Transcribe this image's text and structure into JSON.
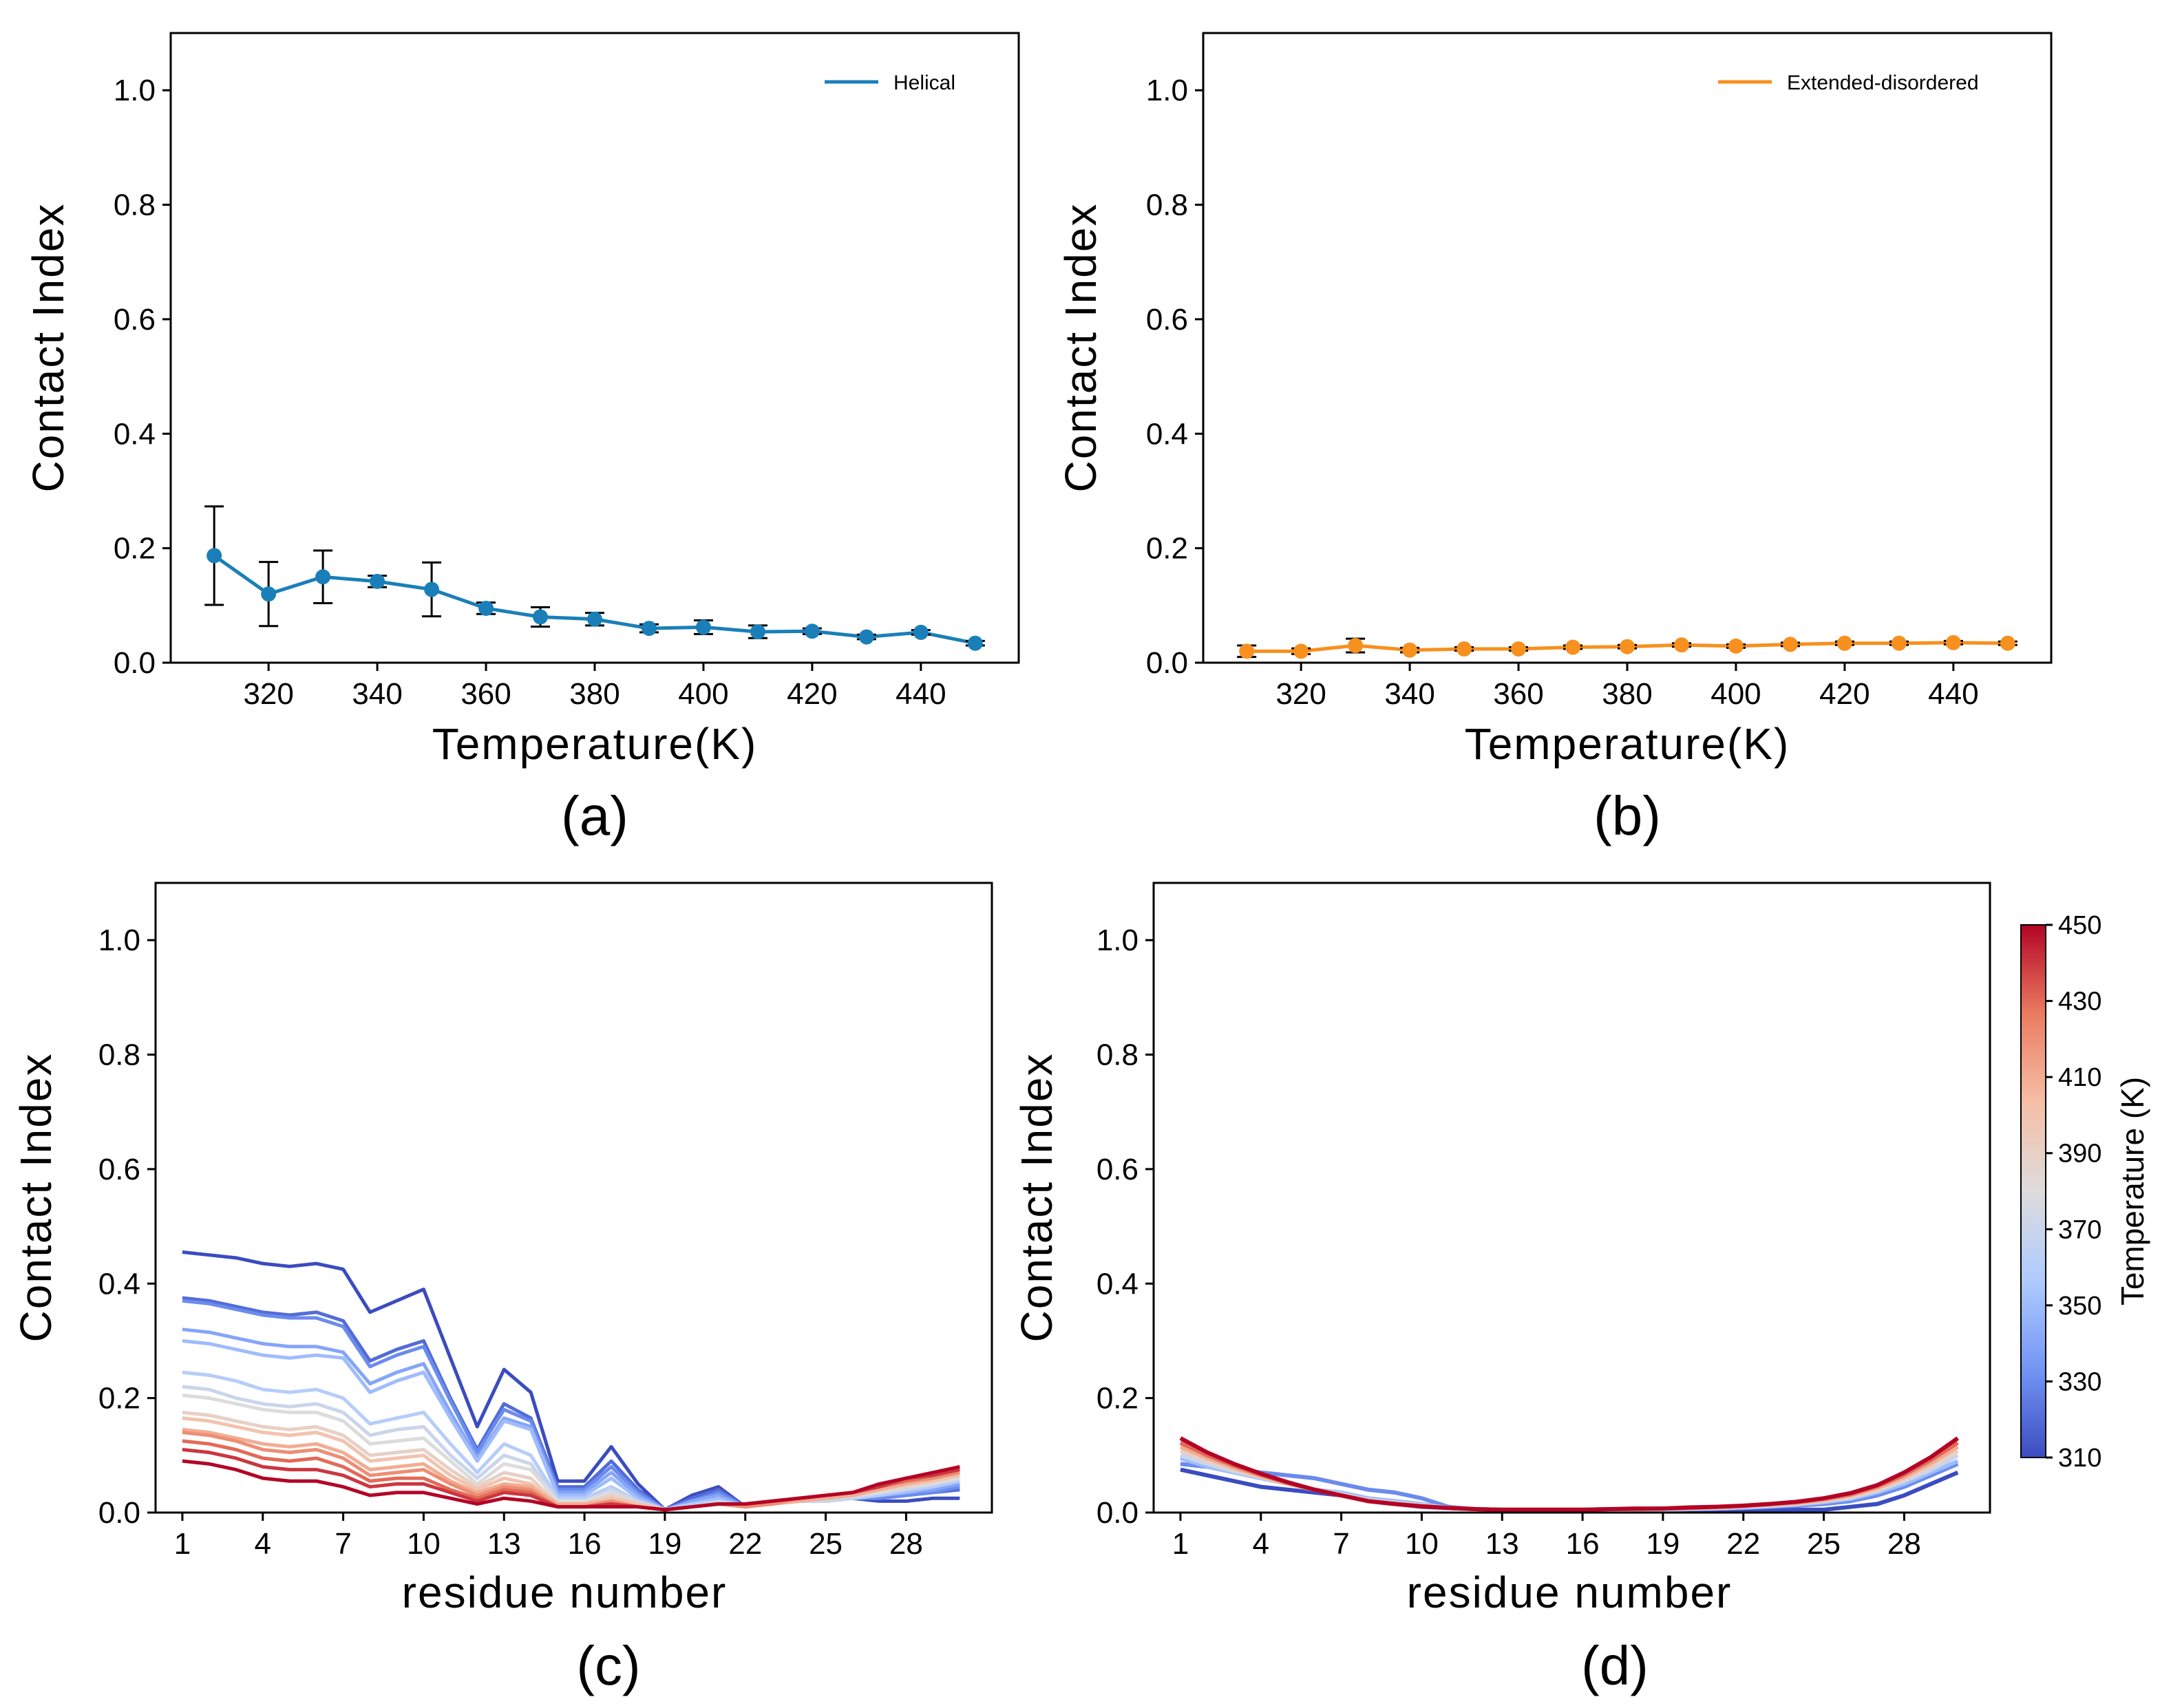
{
  "chart_data": [
    {
      "id": "a",
      "type": "line",
      "panel_label": "(a)",
      "xlabel": "Temperature(K)",
      "ylabel": "Contact Index",
      "xlim": [
        302,
        458
      ],
      "ylim": [
        0,
        1.1
      ],
      "xticks": [
        320,
        340,
        360,
        380,
        400,
        420,
        440
      ],
      "yticks": [
        0.0,
        0.2,
        0.4,
        0.6,
        0.8,
        1.0
      ],
      "legend_position": "top-right",
      "series": [
        {
          "name": "Helical",
          "color": "#1a7fb8",
          "x": [
            310,
            320,
            330,
            340,
            350,
            360,
            370,
            380,
            390,
            400,
            410,
            420,
            430,
            440,
            450
          ],
          "y": [
            0.187,
            0.12,
            0.15,
            0.142,
            0.128,
            0.095,
            0.08,
            0.076,
            0.06,
            0.062,
            0.054,
            0.055,
            0.045,
            0.053,
            0.034
          ],
          "err": [
            0.086,
            0.056,
            0.046,
            0.01,
            0.047,
            0.01,
            0.017,
            0.011,
            0.007,
            0.012,
            0.011,
            0.005,
            0.004,
            0.004,
            0.004
          ]
        }
      ]
    },
    {
      "id": "b",
      "type": "line",
      "panel_label": "(b)",
      "xlabel": "Temperature(K)",
      "ylabel": "Contact Index",
      "xlim": [
        302,
        458
      ],
      "ylim": [
        0,
        1.1
      ],
      "xticks": [
        320,
        340,
        360,
        380,
        400,
        420,
        440
      ],
      "yticks": [
        0.0,
        0.2,
        0.4,
        0.6,
        0.8,
        1.0
      ],
      "legend_position": "top-right",
      "series": [
        {
          "name": "Extended-disordered",
          "color": "#f7901e",
          "x": [
            310,
            320,
            330,
            340,
            350,
            360,
            370,
            380,
            390,
            400,
            410,
            420,
            430,
            440,
            450
          ],
          "y": [
            0.02,
            0.02,
            0.03,
            0.022,
            0.024,
            0.024,
            0.027,
            0.028,
            0.031,
            0.029,
            0.032,
            0.034,
            0.034,
            0.035,
            0.034
          ],
          "err": [
            0.01,
            0.005,
            0.012,
            0.004,
            0.003,
            0.003,
            0.003,
            0.003,
            0.003,
            0.003,
            0.003,
            0.003,
            0.003,
            0.003,
            0.003
          ]
        }
      ]
    },
    {
      "id": "c",
      "type": "line",
      "panel_label": "(c)",
      "xlabel": "residue number",
      "ylabel": "Contact Index",
      "xlim": [
        0,
        31.2
      ],
      "ylim": [
        0,
        1.1
      ],
      "xticks": [
        1,
        4,
        7,
        10,
        13,
        16,
        19,
        22,
        25,
        28
      ],
      "yticks": [
        0.0,
        0.2,
        0.4,
        0.6,
        0.8,
        1.0
      ],
      "residues": [
        1,
        2,
        3,
        4,
        5,
        6,
        7,
        8,
        9,
        10,
        11,
        12,
        13,
        14,
        15,
        16,
        17,
        18,
        19,
        20,
        21,
        22,
        23,
        24,
        25,
        26,
        27,
        28,
        29,
        30
      ],
      "series": [
        {
          "temperature": 310,
          "values": [
            0.455,
            0.45,
            0.445,
            0.435,
            0.43,
            0.435,
            0.425,
            0.35,
            0.37,
            0.39,
            0.27,
            0.15,
            0.25,
            0.21,
            0.055,
            0.055,
            0.115,
            0.05,
            0.005,
            0.03,
            0.045,
            0.01,
            0.02,
            0.025,
            0.025,
            0.025,
            0.02,
            0.02,
            0.025,
            0.025
          ]
        },
        {
          "temperature": 320,
          "values": [
            0.375,
            0.37,
            0.36,
            0.35,
            0.345,
            0.35,
            0.335,
            0.265,
            0.285,
            0.3,
            0.2,
            0.11,
            0.19,
            0.165,
            0.045,
            0.045,
            0.09,
            0.04,
            0.005,
            0.025,
            0.04,
            0.01,
            0.015,
            0.02,
            0.02,
            0.025,
            0.025,
            0.03,
            0.035,
            0.04
          ]
        },
        {
          "temperature": 330,
          "values": [
            0.37,
            0.365,
            0.355,
            0.345,
            0.34,
            0.34,
            0.325,
            0.255,
            0.275,
            0.29,
            0.195,
            0.105,
            0.18,
            0.16,
            0.04,
            0.04,
            0.08,
            0.035,
            0.005,
            0.02,
            0.035,
            0.01,
            0.015,
            0.02,
            0.02,
            0.025,
            0.025,
            0.03,
            0.035,
            0.045
          ]
        },
        {
          "temperature": 340,
          "values": [
            0.32,
            0.315,
            0.305,
            0.295,
            0.29,
            0.29,
            0.28,
            0.225,
            0.245,
            0.26,
            0.175,
            0.095,
            0.165,
            0.15,
            0.035,
            0.035,
            0.07,
            0.03,
            0.005,
            0.02,
            0.03,
            0.01,
            0.015,
            0.02,
            0.02,
            0.025,
            0.03,
            0.035,
            0.04,
            0.05
          ]
        },
        {
          "temperature": 350,
          "values": [
            0.3,
            0.295,
            0.285,
            0.275,
            0.27,
            0.275,
            0.27,
            0.21,
            0.23,
            0.245,
            0.165,
            0.09,
            0.16,
            0.145,
            0.03,
            0.03,
            0.06,
            0.025,
            0.005,
            0.015,
            0.025,
            0.01,
            0.015,
            0.02,
            0.02,
            0.025,
            0.03,
            0.035,
            0.045,
            0.055
          ]
        },
        {
          "temperature": 360,
          "values": [
            0.245,
            0.24,
            0.23,
            0.215,
            0.21,
            0.215,
            0.2,
            0.155,
            0.165,
            0.175,
            0.12,
            0.07,
            0.12,
            0.1,
            0.025,
            0.025,
            0.045,
            0.02,
            0.005,
            0.015,
            0.02,
            0.01,
            0.015,
            0.02,
            0.02,
            0.025,
            0.03,
            0.04,
            0.045,
            0.055
          ]
        },
        {
          "temperature": 370,
          "values": [
            0.22,
            0.215,
            0.2,
            0.19,
            0.185,
            0.19,
            0.175,
            0.135,
            0.145,
            0.15,
            0.1,
            0.06,
            0.1,
            0.085,
            0.02,
            0.02,
            0.04,
            0.02,
            0.005,
            0.01,
            0.02,
            0.01,
            0.015,
            0.02,
            0.02,
            0.025,
            0.035,
            0.04,
            0.05,
            0.06
          ]
        },
        {
          "temperature": 380,
          "values": [
            0.205,
            0.2,
            0.19,
            0.18,
            0.175,
            0.175,
            0.16,
            0.12,
            0.125,
            0.13,
            0.09,
            0.05,
            0.085,
            0.075,
            0.02,
            0.02,
            0.035,
            0.015,
            0.005,
            0.01,
            0.015,
            0.01,
            0.015,
            0.02,
            0.025,
            0.03,
            0.035,
            0.045,
            0.05,
            0.06
          ]
        },
        {
          "temperature": 390,
          "values": [
            0.175,
            0.17,
            0.16,
            0.15,
            0.145,
            0.15,
            0.135,
            0.1,
            0.105,
            0.11,
            0.075,
            0.045,
            0.07,
            0.06,
            0.015,
            0.015,
            0.03,
            0.015,
            0.005,
            0.01,
            0.015,
            0.01,
            0.015,
            0.02,
            0.025,
            0.03,
            0.04,
            0.045,
            0.055,
            0.065
          ]
        },
        {
          "temperature": 400,
          "values": [
            0.165,
            0.16,
            0.15,
            0.14,
            0.135,
            0.14,
            0.125,
            0.09,
            0.095,
            0.1,
            0.065,
            0.04,
            0.06,
            0.05,
            0.015,
            0.015,
            0.025,
            0.015,
            0.005,
            0.01,
            0.015,
            0.01,
            0.015,
            0.02,
            0.025,
            0.03,
            0.04,
            0.05,
            0.055,
            0.065
          ]
        },
        {
          "temperature": 410,
          "values": [
            0.145,
            0.14,
            0.13,
            0.12,
            0.115,
            0.12,
            0.105,
            0.075,
            0.08,
            0.085,
            0.055,
            0.035,
            0.05,
            0.045,
            0.015,
            0.015,
            0.02,
            0.01,
            0.005,
            0.01,
            0.015,
            0.01,
            0.015,
            0.02,
            0.025,
            0.03,
            0.04,
            0.05,
            0.06,
            0.07
          ]
        },
        {
          "temperature": 420,
          "values": [
            0.14,
            0.135,
            0.125,
            0.11,
            0.105,
            0.11,
            0.095,
            0.065,
            0.07,
            0.075,
            0.05,
            0.03,
            0.045,
            0.04,
            0.01,
            0.01,
            0.02,
            0.01,
            0.005,
            0.01,
            0.015,
            0.01,
            0.015,
            0.025,
            0.03,
            0.035,
            0.045,
            0.055,
            0.06,
            0.07
          ]
        },
        {
          "temperature": 430,
          "values": [
            0.125,
            0.12,
            0.11,
            0.095,
            0.09,
            0.095,
            0.08,
            0.055,
            0.06,
            0.06,
            0.04,
            0.025,
            0.04,
            0.035,
            0.01,
            0.01,
            0.015,
            0.01,
            0.005,
            0.01,
            0.015,
            0.015,
            0.02,
            0.025,
            0.03,
            0.035,
            0.045,
            0.055,
            0.065,
            0.075
          ]
        },
        {
          "temperature": 440,
          "values": [
            0.11,
            0.105,
            0.095,
            0.08,
            0.075,
            0.075,
            0.065,
            0.045,
            0.05,
            0.05,
            0.035,
            0.02,
            0.035,
            0.03,
            0.01,
            0.01,
            0.015,
            0.01,
            0.005,
            0.01,
            0.015,
            0.015,
            0.02,
            0.025,
            0.03,
            0.035,
            0.045,
            0.06,
            0.065,
            0.075
          ]
        },
        {
          "temperature": 450,
          "values": [
            0.09,
            0.085,
            0.075,
            0.06,
            0.055,
            0.055,
            0.045,
            0.03,
            0.035,
            0.035,
            0.025,
            0.015,
            0.025,
            0.02,
            0.01,
            0.01,
            0.01,
            0.01,
            0.005,
            0.01,
            0.015,
            0.015,
            0.02,
            0.025,
            0.03,
            0.035,
            0.05,
            0.06,
            0.07,
            0.08
          ]
        }
      ]
    },
    {
      "id": "d",
      "type": "line",
      "panel_label": "(d)",
      "xlabel": "residue number",
      "ylabel": "Contact Index",
      "xlim": [
        0,
        31.2
      ],
      "ylim": [
        0,
        1.1
      ],
      "xticks": [
        1,
        4,
        7,
        10,
        13,
        16,
        19,
        22,
        25,
        28
      ],
      "yticks": [
        0.0,
        0.2,
        0.4,
        0.6,
        0.8,
        1.0
      ],
      "residues": [
        1,
        2,
        3,
        4,
        5,
        6,
        7,
        8,
        9,
        10,
        11,
        12,
        13,
        14,
        15,
        16,
        17,
        18,
        19,
        20,
        21,
        22,
        23,
        24,
        25,
        26,
        27,
        28,
        29,
        30
      ],
      "series": [
        {
          "temperature": 310,
          "values": [
            0.075,
            0.065,
            0.055,
            0.045,
            0.04,
            0.035,
            0.03,
            0.02,
            0.015,
            0.01,
            0.008,
            0.006,
            0.005,
            0.005,
            0.005,
            0.005,
            0.005,
            0.005,
            0.005,
            0.005,
            0.005,
            0.005,
            0.005,
            0.005,
            0.005,
            0.01,
            0.015,
            0.03,
            0.05,
            0.07
          ]
        },
        {
          "temperature": 330,
          "values": [
            0.085,
            0.08,
            0.075,
            0.07,
            0.065,
            0.06,
            0.05,
            0.04,
            0.035,
            0.025,
            0.01,
            0.006,
            0.005,
            0.005,
            0.005,
            0.005,
            0.005,
            0.005,
            0.005,
            0.006,
            0.007,
            0.008,
            0.01,
            0.012,
            0.015,
            0.02,
            0.03,
            0.045,
            0.065,
            0.085
          ]
        },
        {
          "temperature": 350,
          "values": [
            0.095,
            0.08,
            0.07,
            0.06,
            0.05,
            0.04,
            0.035,
            0.025,
            0.02,
            0.015,
            0.008,
            0.006,
            0.005,
            0.005,
            0.005,
            0.005,
            0.005,
            0.005,
            0.005,
            0.006,
            0.007,
            0.009,
            0.011,
            0.014,
            0.018,
            0.024,
            0.035,
            0.05,
            0.07,
            0.09
          ]
        },
        {
          "temperature": 370,
          "values": [
            0.1,
            0.085,
            0.072,
            0.062,
            0.05,
            0.04,
            0.032,
            0.022,
            0.017,
            0.013,
            0.008,
            0.006,
            0.005,
            0.005,
            0.005,
            0.005,
            0.005,
            0.006,
            0.006,
            0.007,
            0.008,
            0.01,
            0.012,
            0.015,
            0.02,
            0.026,
            0.038,
            0.055,
            0.075,
            0.1
          ]
        },
        {
          "temperature": 390,
          "values": [
            0.108,
            0.09,
            0.075,
            0.062,
            0.05,
            0.04,
            0.031,
            0.021,
            0.016,
            0.012,
            0.008,
            0.006,
            0.005,
            0.005,
            0.005,
            0.005,
            0.006,
            0.006,
            0.007,
            0.008,
            0.009,
            0.011,
            0.013,
            0.016,
            0.021,
            0.028,
            0.04,
            0.058,
            0.08,
            0.108
          ]
        },
        {
          "temperature": 410,
          "values": [
            0.115,
            0.095,
            0.078,
            0.064,
            0.051,
            0.04,
            0.03,
            0.02,
            0.015,
            0.011,
            0.008,
            0.006,
            0.005,
            0.005,
            0.005,
            0.005,
            0.006,
            0.006,
            0.007,
            0.008,
            0.009,
            0.011,
            0.014,
            0.017,
            0.022,
            0.03,
            0.043,
            0.062,
            0.086,
            0.115
          ]
        },
        {
          "temperature": 430,
          "values": [
            0.122,
            0.1,
            0.082,
            0.066,
            0.052,
            0.04,
            0.03,
            0.02,
            0.015,
            0.011,
            0.008,
            0.006,
            0.005,
            0.005,
            0.005,
            0.005,
            0.006,
            0.006,
            0.007,
            0.008,
            0.01,
            0.012,
            0.015,
            0.018,
            0.024,
            0.032,
            0.046,
            0.066,
            0.092,
            0.122
          ]
        },
        {
          "temperature": 450,
          "values": [
            0.13,
            0.105,
            0.085,
            0.068,
            0.053,
            0.04,
            0.03,
            0.02,
            0.015,
            0.011,
            0.008,
            0.006,
            0.005,
            0.005,
            0.005,
            0.005,
            0.006,
            0.007,
            0.007,
            0.009,
            0.01,
            0.012,
            0.015,
            0.019,
            0.025,
            0.034,
            0.048,
            0.07,
            0.097,
            0.13
          ]
        }
      ]
    }
  ],
  "colorbar": {
    "label": "Temperature (K)",
    "min": 310,
    "max": 450,
    "ticks": [
      310,
      330,
      350,
      370,
      390,
      410,
      430,
      450
    ],
    "colormap": "coolwarm",
    "colors": [
      "#3b4cc0",
      "#7396f5",
      "#b0cbff",
      "#dddcdc",
      "#f6bfa6",
      "#ea7b60",
      "#b40426"
    ]
  }
}
